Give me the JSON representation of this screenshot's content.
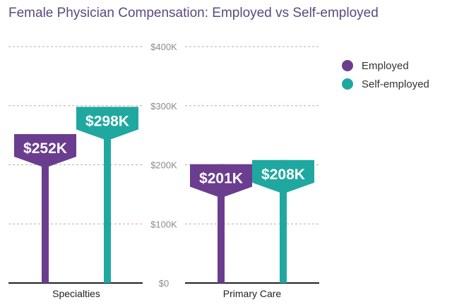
{
  "chart_data": {
    "type": "bar",
    "title": "Female Physician Compensation: Employed vs Self-employed",
    "categories": [
      "Specialties",
      "Primary Care"
    ],
    "series": [
      {
        "name": "Employed",
        "color": "#6b3d8f",
        "values": [
          252,
          201
        ],
        "labels": [
          "$252K",
          "$201K"
        ]
      },
      {
        "name": "Self-employed",
        "color": "#1fa8a0",
        "values": [
          298,
          208
        ],
        "labels": [
          "$298K",
          "$208K"
        ]
      }
    ],
    "ylim": [
      0,
      400
    ],
    "yticks": [
      0,
      100,
      200,
      300,
      400
    ],
    "ytick_labels": [
      "$0",
      "$100K",
      "$200K",
      "$300K",
      "$400K"
    ],
    "xlabel": "",
    "ylabel": "",
    "units": "thousand USD",
    "grid": true,
    "legend_position": "top-right"
  }
}
